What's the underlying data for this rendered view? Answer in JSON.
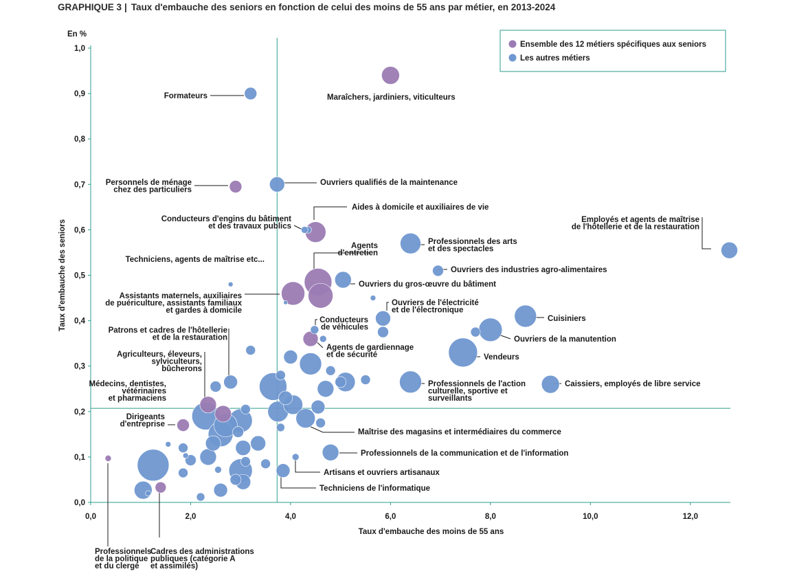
{
  "figure_id": "GRAPHIQUE 3",
  "title": "Taux d'embauche des seniors en fonction de celui des moins de 55 ans par métier, en 2013-2024",
  "colors": {
    "seniors": "#9b7bb3",
    "autres": "#6f97d0",
    "axis": "#2e9e8c",
    "leader": "#1a1a1a"
  },
  "chart_data": {
    "type": "scatter",
    "title": "Taux d'embauche des seniors en fonction de celui des moins de 55 ans par métier, en 2013-2024",
    "xlabel": "Taux d'embauche des moins de 55 ans",
    "ylabel": "Taux d'embauche des seniors",
    "unit_label": "En %",
    "xlim": [
      0,
      12.8
    ],
    "ylim": [
      0,
      1.0
    ],
    "x_ticks": [
      "0,0",
      "2,0",
      "4,0",
      "6,0",
      "8,0",
      "10,0",
      "12,0"
    ],
    "x_tick_values": [
      0,
      2,
      4,
      6,
      8,
      10,
      12
    ],
    "y_ticks": [
      "0,0",
      "0,1",
      "0,2",
      "0,3",
      "0,4",
      "0,5",
      "0,6",
      "0,7",
      "0,8",
      "0,9",
      "1,0"
    ],
    "y_tick_values": [
      0,
      0.1,
      0.2,
      0.3,
      0.4,
      0.5,
      0.6,
      0.7,
      0.8,
      0.9,
      1.0
    ],
    "reference_lines": {
      "x": 3.73,
      "y": 0.207
    },
    "legend": [
      {
        "key": "seniors",
        "label": "Ensemble des 12 métiers spécifiques aux seniors"
      },
      {
        "key": "autres",
        "label": "Les autres métiers"
      }
    ],
    "labeled_points": [
      {
        "name": "Maraîchers, jardiniers, viticulteurs",
        "x": 6.0,
        "y": 0.94,
        "size": 13,
        "group": "seniors",
        "lines": [
          "Maraîchers, jardiniers, viticulteurs"
        ]
      },
      {
        "name": "Formateurs",
        "x": 3.2,
        "y": 0.9,
        "size": 9,
        "group": "autres",
        "lines": [
          "Formateurs"
        ]
      },
      {
        "name": "Personnels de ménage chez des particuliers",
        "x": 2.9,
        "y": 0.695,
        "size": 9,
        "group": "seniors",
        "lines": [
          "Personnels de ménage",
          "chez des particuliers"
        ]
      },
      {
        "name": "Ouvriers qualifiés de la maintenance",
        "x": 3.73,
        "y": 0.7,
        "size": 11,
        "group": "autres",
        "lines": [
          "Ouvriers qualifiés de la maintenance"
        ]
      },
      {
        "name": "Aides à domicile et auxiliaires de vie",
        "x": 4.5,
        "y": 0.595,
        "size": 15,
        "group": "seniors",
        "lines": [
          "Aides à domicile et auxiliaires de vie"
        ]
      },
      {
        "name": "Conducteurs d'engins du bâtiment et des travaux publics",
        "x": 4.28,
        "y": 0.6,
        "size": 5,
        "group": "autres",
        "lines": [
          "Conducteurs d'engins du bâtiment",
          "et des travaux publics"
        ]
      },
      {
        "name": "Employés et agents de maîtrise de l'hôtellerie et de la restauration",
        "x": 12.78,
        "y": 0.555,
        "size": 12,
        "group": "autres",
        "lines": [
          "Employés et agents de maîtrise",
          "de l'hôtellerie et de la restauration"
        ]
      },
      {
        "name": "Professionnels des arts et des spectacles",
        "x": 6.4,
        "y": 0.57,
        "size": 15,
        "group": "autres",
        "lines": [
          "Professionnels des arts",
          "et des spectacles"
        ]
      },
      {
        "name": "Agents d'entretien",
        "x": 4.55,
        "y": 0.485,
        "size": 20,
        "group": "seniors",
        "lines": [
          "Agents",
          "d'entretien"
        ]
      },
      {
        "name": "Ouvriers des industries agro-alimentaires",
        "x": 6.95,
        "y": 0.51,
        "size": 8,
        "group": "autres",
        "lines": [
          "Ouvriers des industries agro-alimentaires"
        ]
      },
      {
        "name": "Techniciens, agents de maîtrise etc...",
        "x": 2.8,
        "y": 0.48,
        "size": 3.5,
        "group": "autres",
        "lines": [
          "Techniciens, agents de maîtrise etc..."
        ]
      },
      {
        "name": "Ouvriers du gros-œuvre du bâtiment",
        "x": 5.05,
        "y": 0.49,
        "size": 12,
        "group": "autres",
        "lines": [
          "Ouvriers du gros-œuvre du bâtiment"
        ]
      },
      {
        "name": "Assistants maternels, auxiliaires de puériculture, assistants familiaux et gardes à domicile",
        "x": 4.05,
        "y": 0.46,
        "size": 17,
        "group": "seniors",
        "lines": [
          "Assistants maternels, auxiliaires",
          "de puériculture, assistants familiaux",
          "et gardes à domicile"
        ]
      },
      {
        "name": "Ouvriers de l'électricité et de l'électronique",
        "x": 5.85,
        "y": 0.405,
        "size": 11,
        "group": "autres",
        "lines": [
          "Ouvriers de l'électricité",
          "et de l'électronique"
        ]
      },
      {
        "name": "Cuisiniers",
        "x": 8.7,
        "y": 0.41,
        "size": 16,
        "group": "autres",
        "lines": [
          "Cuisiniers"
        ]
      },
      {
        "name": "Conducteurs de véhicules",
        "x": 4.48,
        "y": 0.38,
        "size": 6,
        "group": "autres",
        "lines": [
          "Conducteurs",
          "de véhicules"
        ]
      },
      {
        "name": "Patrons et cadres de l'hôtellerie et de la restauration",
        "x": 2.8,
        "y": 0.265,
        "size": 10,
        "group": "autres",
        "lines": [
          "Patrons et cadres de l'hôtellerie",
          "et de la restauration"
        ]
      },
      {
        "name": "Agents de gardiennage et de sécurité",
        "x": 4.4,
        "y": 0.36,
        "size": 11,
        "group": "seniors",
        "lines": [
          "Agents de gardiennage",
          "et de sécurité"
        ]
      },
      {
        "name": "Ouvriers de la manutention",
        "x": 8.0,
        "y": 0.38,
        "size": 17,
        "group": "autres",
        "lines": [
          "Ouvriers de la manutention"
        ]
      },
      {
        "name": "Vendeurs",
        "x": 7.45,
        "y": 0.33,
        "size": 21,
        "group": "autres",
        "lines": [
          "Vendeurs"
        ]
      },
      {
        "name": "Agriculteurs, éleveurs, sylviculteurs, bûcherons",
        "x": 2.35,
        "y": 0.215,
        "size": 12,
        "group": "seniors",
        "lines": [
          "Agriculteurs, éleveurs,",
          "sylviculteurs,",
          "bûcherons"
        ]
      },
      {
        "name": "Médecins, dentistes, vétérinaires et pharmaciens",
        "x": 2.3,
        "y": 0.19,
        "size": 20,
        "group": "autres",
        "lines": [
          "Médecins, dentistes,",
          "vétérinaires",
          "et pharmaciens"
        ]
      },
      {
        "name": "Professionnels de l'action culturelle, sportive et surveillants",
        "x": 6.4,
        "y": 0.265,
        "size": 16,
        "group": "autres",
        "lines": [
          "Professionnels de l'action",
          "culturelle, sportive et",
          "surveillants"
        ]
      },
      {
        "name": "Caissiers, employés de libre service",
        "x": 9.2,
        "y": 0.26,
        "size": 13,
        "group": "autres",
        "lines": [
          "Caissiers, employés de libre service"
        ]
      },
      {
        "name": "Dirigeants d'entreprise",
        "x": 1.85,
        "y": 0.17,
        "size": 9,
        "group": "seniors",
        "lines": [
          "Dirigeants",
          "d'entreprise"
        ]
      },
      {
        "name": "Maîtrise des magasins et intermédiaires du commerce",
        "x": 4.3,
        "y": 0.185,
        "size": 14,
        "group": "autres",
        "lines": [
          "Maîtrise des magasins et intermédiaires du commerce"
        ]
      },
      {
        "name": "Professionnels de la communication et de l'information",
        "x": 4.8,
        "y": 0.11,
        "size": 12,
        "group": "autres",
        "lines": [
          "Professionnels de la communication et de l'information"
        ]
      },
      {
        "name": "Artisans et ouvriers artisanaux",
        "x": 4.1,
        "y": 0.1,
        "size": 5,
        "group": "autres",
        "lines": [
          "Artisans et ouvriers artisanaux"
        ]
      },
      {
        "name": "Techniciens de l'informatique",
        "x": 3.85,
        "y": 0.07,
        "size": 10,
        "group": "autres",
        "lines": [
          "Techniciens de l'informatique"
        ]
      },
      {
        "name": "Professionnels de la politique et du clergé",
        "x": 0.35,
        "y": 0.097,
        "size": 4.5,
        "group": "seniors",
        "lines": [
          "Professionnels",
          "de la politique",
          "et du clergé"
        ]
      },
      {
        "name": "Cadres des administrations publiques (catégorie A et assimilés)",
        "x": 1.4,
        "y": 0.033,
        "size": 8,
        "group": "seniors",
        "lines": [
          "Cadres des administrations",
          "publiques (catégorie A",
          "et assimilés)"
        ]
      }
    ],
    "unlabeled_points": [
      {
        "x": 4.6,
        "y": 0.455,
        "size": 18,
        "group": "seniors"
      },
      {
        "x": 2.65,
        "y": 0.195,
        "size": 12,
        "group": "seniors"
      },
      {
        "x": 3.9,
        "y": 0.44,
        "size": 3,
        "group": "autres"
      },
      {
        "x": 4.35,
        "y": 0.6,
        "size": 5,
        "group": "autres"
      },
      {
        "x": 5.65,
        "y": 0.45,
        "size": 4,
        "group": "autres"
      },
      {
        "x": 4.65,
        "y": 0.36,
        "size": 5,
        "group": "autres"
      },
      {
        "x": 5.85,
        "y": 0.375,
        "size": 8,
        "group": "autres"
      },
      {
        "x": 7.7,
        "y": 0.375,
        "size": 7,
        "group": "autres"
      },
      {
        "x": 3.2,
        "y": 0.335,
        "size": 7,
        "group": "autres"
      },
      {
        "x": 4.0,
        "y": 0.32,
        "size": 10,
        "group": "autres"
      },
      {
        "x": 4.4,
        "y": 0.305,
        "size": 16,
        "group": "autres"
      },
      {
        "x": 4.8,
        "y": 0.29,
        "size": 7,
        "group": "autres"
      },
      {
        "x": 3.8,
        "y": 0.28,
        "size": 7,
        "group": "autres"
      },
      {
        "x": 3.65,
        "y": 0.255,
        "size": 20,
        "group": "autres"
      },
      {
        "x": 5.0,
        "y": 0.265,
        "size": 8,
        "group": "autres"
      },
      {
        "x": 5.1,
        "y": 0.265,
        "size": 14,
        "group": "autres"
      },
      {
        "x": 4.7,
        "y": 0.25,
        "size": 12,
        "group": "autres"
      },
      {
        "x": 5.5,
        "y": 0.27,
        "size": 7,
        "group": "autres"
      },
      {
        "x": 2.5,
        "y": 0.255,
        "size": 8,
        "group": "autres"
      },
      {
        "x": 3.9,
        "y": 0.23,
        "size": 10,
        "group": "autres"
      },
      {
        "x": 4.05,
        "y": 0.215,
        "size": 14,
        "group": "autres"
      },
      {
        "x": 4.55,
        "y": 0.21,
        "size": 10,
        "group": "autres"
      },
      {
        "x": 3.1,
        "y": 0.205,
        "size": 7,
        "group": "autres"
      },
      {
        "x": 3.75,
        "y": 0.2,
        "size": 15,
        "group": "autres"
      },
      {
        "x": 3.0,
        "y": 0.18,
        "size": 17,
        "group": "autres"
      },
      {
        "x": 2.7,
        "y": 0.17,
        "size": 17,
        "group": "autres"
      },
      {
        "x": 2.6,
        "y": 0.15,
        "size": 18,
        "group": "autres"
      },
      {
        "x": 2.45,
        "y": 0.13,
        "size": 11,
        "group": "autres"
      },
      {
        "x": 3.35,
        "y": 0.13,
        "size": 11,
        "group": "autres"
      },
      {
        "x": 2.95,
        "y": 0.155,
        "size": 8,
        "group": "autres"
      },
      {
        "x": 3.05,
        "y": 0.12,
        "size": 11,
        "group": "autres"
      },
      {
        "x": 4.6,
        "y": 0.175,
        "size": 7,
        "group": "autres"
      },
      {
        "x": 3.8,
        "y": 0.165,
        "size": 6,
        "group": "autres"
      },
      {
        "x": 1.25,
        "y": 0.082,
        "size": 23,
        "group": "autres"
      },
      {
        "x": 1.55,
        "y": 0.128,
        "size": 4,
        "group": "autres"
      },
      {
        "x": 1.85,
        "y": 0.12,
        "size": 7,
        "group": "autres"
      },
      {
        "x": 1.9,
        "y": 0.103,
        "size": 4,
        "group": "autres"
      },
      {
        "x": 2.0,
        "y": 0.093,
        "size": 8,
        "group": "autres"
      },
      {
        "x": 2.35,
        "y": 0.1,
        "size": 12,
        "group": "autres"
      },
      {
        "x": 1.85,
        "y": 0.065,
        "size": 7,
        "group": "autres"
      },
      {
        "x": 2.55,
        "y": 0.072,
        "size": 5,
        "group": "autres"
      },
      {
        "x": 3.0,
        "y": 0.07,
        "size": 17,
        "group": "autres"
      },
      {
        "x": 3.1,
        "y": 0.09,
        "size": 7,
        "group": "autres"
      },
      {
        "x": 3.5,
        "y": 0.085,
        "size": 7,
        "group": "autres"
      },
      {
        "x": 2.9,
        "y": 0.05,
        "size": 8,
        "group": "autres"
      },
      {
        "x": 3.05,
        "y": 0.045,
        "size": 11,
        "group": "autres"
      },
      {
        "x": 2.6,
        "y": 0.027,
        "size": 10,
        "group": "autres"
      },
      {
        "x": 1.05,
        "y": 0.027,
        "size": 13,
        "group": "autres"
      },
      {
        "x": 2.2,
        "y": 0.012,
        "size": 6,
        "group": "autres"
      },
      {
        "x": 1.15,
        "y": 0.02,
        "size": 4,
        "group": "autres"
      }
    ]
  }
}
